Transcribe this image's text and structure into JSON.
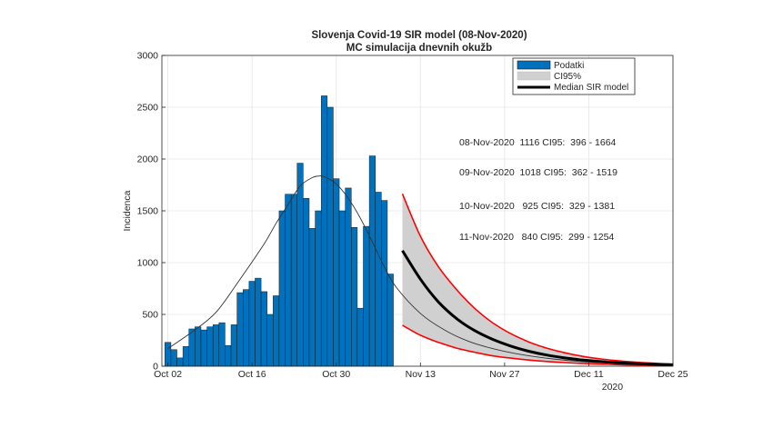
{
  "chart_data": {
    "type": "bar",
    "title": "Slovenja Covid-19 SIR model (08-Nov-2020)",
    "subtitle": "MC simulacija dnevnih okužb",
    "xlabel": "",
    "ylabel": "Incidenca",
    "x_unit": "days since 01-Oct-2020",
    "xlim": [
      1,
      86
    ],
    "ylim": [
      0,
      3000
    ],
    "grid": true,
    "legend_position": "top-right",
    "x_ticks": [
      {
        "value": 2,
        "label": "Oct 02"
      },
      {
        "value": 16,
        "label": "Oct 16"
      },
      {
        "value": 30,
        "label": "Oct 30"
      },
      {
        "value": 44,
        "label": "Nov 13"
      },
      {
        "value": 58,
        "label": "Nov 27"
      },
      {
        "value": 72,
        "label": "Dec 11"
      },
      {
        "value": 86,
        "label": "Dec 25"
      }
    ],
    "x_year_label": "2020",
    "y_ticks": [
      0,
      500,
      1000,
      1500,
      2000,
      2500,
      3000
    ],
    "legend": [
      {
        "key": "bars",
        "label": "Podatki"
      },
      {
        "key": "ci",
        "label": "CI95%"
      },
      {
        "key": "median",
        "label": "Median SIR model"
      }
    ],
    "series": [
      {
        "name": "Podatki",
        "kind": "bar",
        "color": "#0072bd",
        "x": [
          2,
          3,
          4,
          5,
          6,
          7,
          8,
          9,
          10,
          11,
          12,
          13,
          14,
          15,
          16,
          17,
          18,
          19,
          20,
          21,
          22,
          23,
          24,
          25,
          26,
          27,
          28,
          29,
          30,
          31,
          32,
          33,
          34,
          35,
          36,
          37,
          38
        ],
        "values": [
          230,
          160,
          80,
          190,
          360,
          380,
          350,
          380,
          400,
          420,
          200,
          400,
          710,
          740,
          820,
          850,
          720,
          500,
          680,
          1500,
          1660,
          1660,
          1960,
          1620,
          1330,
          1500,
          2610,
          2500,
          1810,
          1500,
          1720,
          1340,
          560,
          1350,
          2030,
          1680,
          1600
        ]
      },
      {
        "name": "Data on final day",
        "kind": "bar",
        "color": "#0072bd",
        "x": [
          39
        ],
        "values": [
          890
        ]
      },
      {
        "name": "SIR fit",
        "kind": "line",
        "color": "#333333",
        "x": [
          2,
          6,
          10,
          14,
          18,
          20,
          22,
          24,
          26,
          27,
          28,
          30,
          32,
          34,
          36,
          38,
          40,
          44,
          48,
          52,
          56,
          60,
          66,
          72,
          78,
          84
        ],
        "values": [
          170,
          330,
          520,
          840,
          1180,
          1380,
          1560,
          1740,
          1820,
          1835,
          1830,
          1760,
          1620,
          1430,
          1200,
          960,
          760,
          510,
          350,
          240,
          170,
          120,
          70,
          40,
          25,
          15
        ]
      },
      {
        "name": "Median SIR model",
        "kind": "line",
        "color": "#000000",
        "x": [
          41,
          44,
          47,
          50,
          53,
          56,
          59,
          62,
          65,
          68,
          71,
          74,
          77,
          80,
          83,
          86
        ],
        "values": [
          1116,
          840,
          620,
          460,
          345,
          260,
          195,
          145,
          108,
          80,
          60,
          45,
          33,
          25,
          18,
          13
        ]
      },
      {
        "name": "CI95% upper",
        "kind": "line",
        "color": "#ff0000",
        "x": [
          41,
          44,
          47,
          50,
          53,
          56,
          59,
          62,
          65,
          68,
          71,
          74,
          77,
          80,
          83,
          86
        ],
        "values": [
          1664,
          1254,
          960,
          740,
          560,
          420,
          315,
          235,
          175,
          130,
          95,
          70,
          52,
          38,
          28,
          20
        ]
      },
      {
        "name": "CI95% lower",
        "kind": "line",
        "color": "#ff0000",
        "x": [
          41,
          44,
          47,
          50,
          53,
          56,
          59,
          62,
          65,
          68,
          71,
          74,
          77,
          80,
          83,
          86
        ],
        "values": [
          396,
          299,
          230,
          175,
          135,
          100,
          78,
          60,
          46,
          35,
          27,
          20,
          15,
          11,
          8,
          6
        ]
      }
    ],
    "annotations": [
      "08-Nov-2020  1116 CI95:  396 - 1664",
      "09-Nov-2020  1018 CI95:  362 - 1519",
      "10-Nov-2020   925 CI95:  329 - 1381",
      "11-Nov-2020   840 CI95:  299 - 1254"
    ],
    "colors": {
      "bar": "#0072bd",
      "ci_fill": "#d0d0d0",
      "ci_line": "#ff0000",
      "median": "#000000",
      "fit": "#333333",
      "grid": "#e6e6e6",
      "axis": "#262626"
    }
  }
}
